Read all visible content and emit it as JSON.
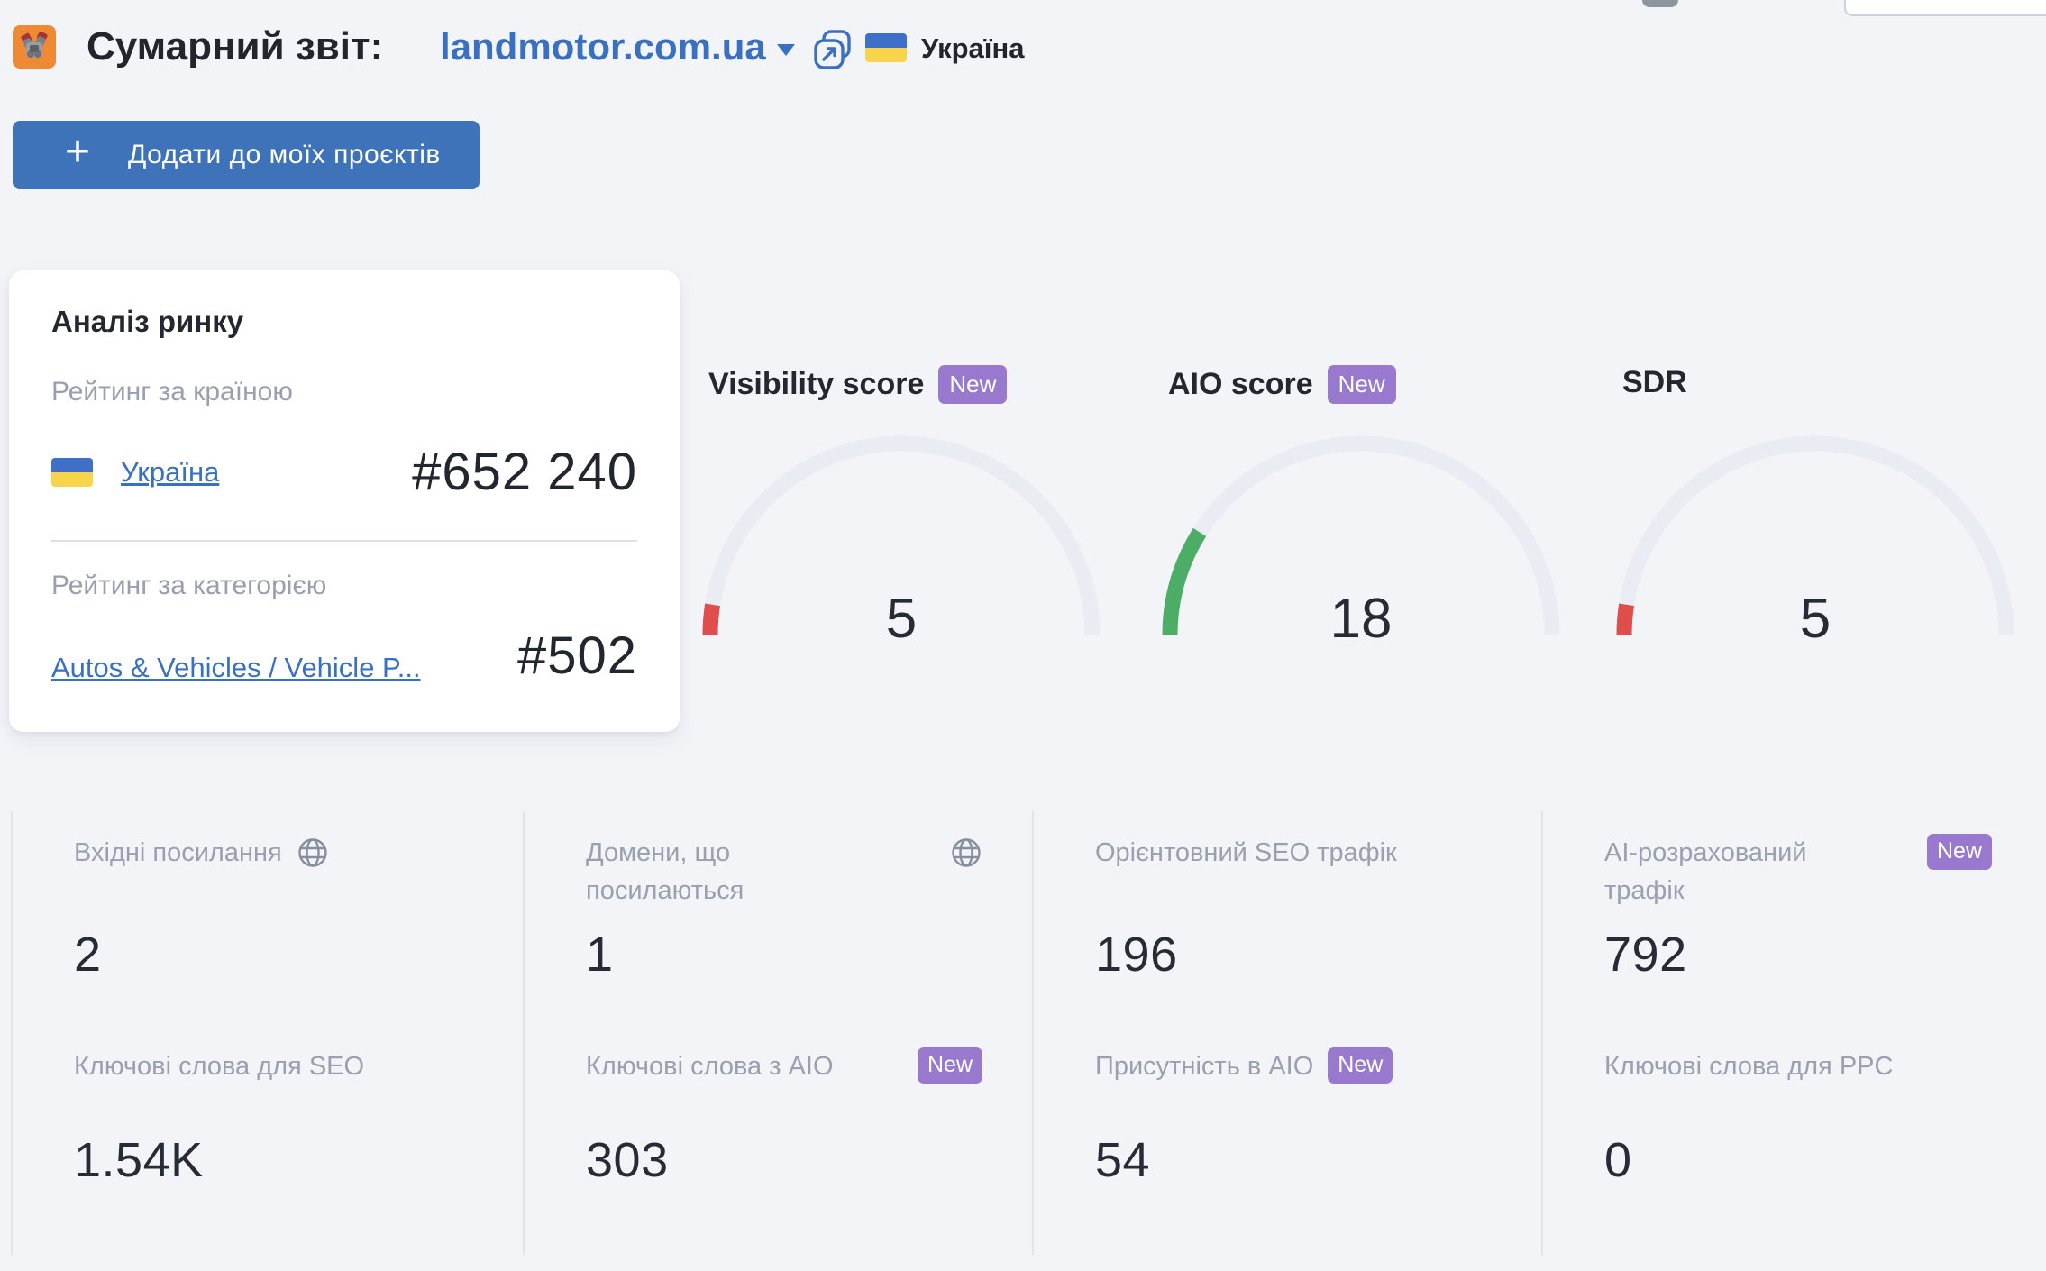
{
  "header": {
    "title": "Сумарний звіт:",
    "domain": "landmotor.com.ua",
    "country": "Україна",
    "add_project_button": "Додати до моїх проєктів"
  },
  "market_analysis": {
    "title": "Аналіз ринку",
    "country_rank_label": "Рейтинг за країною",
    "country_link": "Україна",
    "country_rank": "#652 240",
    "category_rank_label": "Рейтинг за категорією",
    "category_link": "Autos & Vehicles / Vehicle P...",
    "category_rank": "#502"
  },
  "gauges": [
    {
      "label": "Visibility score",
      "badge": "New",
      "value": 5,
      "max": 100,
      "color": "#df4e4c"
    },
    {
      "label": "AIO score",
      "badge": "New",
      "value": 18,
      "max": 100,
      "color": "#4cae66"
    },
    {
      "label": "SDR",
      "badge": "",
      "value": 5,
      "max": 100,
      "color": "#df4e4c"
    }
  ],
  "chart_data": {
    "type": "gauge",
    "series": [
      {
        "name": "Visibility score",
        "value": 5,
        "range": [
          0,
          100
        ],
        "color": "#df4e4c"
      },
      {
        "name": "AIO score",
        "value": 18,
        "range": [
          0,
          100
        ],
        "color": "#4cae66"
      },
      {
        "name": "SDR",
        "value": 5,
        "range": [
          0,
          100
        ],
        "color": "#df4e4c"
      }
    ]
  },
  "metrics": {
    "items": [
      {
        "label": "Вхідні посилання",
        "value": "2",
        "icon": "globe",
        "badge": ""
      },
      {
        "label": "Домени, що посилаються",
        "value": "1",
        "icon": "globe",
        "badge": ""
      },
      {
        "label": "Орієнтовний SEO трафік",
        "value": "196",
        "icon": "",
        "badge": ""
      },
      {
        "label": "AI-розрахований трафік",
        "value": "792",
        "icon": "",
        "badge": "New"
      },
      {
        "label": "Ключові слова для SEO",
        "value": "1.54K",
        "icon": "",
        "badge": ""
      },
      {
        "label": "Ключові слова з AIO",
        "value": "303",
        "icon": "",
        "badge": "New"
      },
      {
        "label": "Присутність в AIO",
        "value": "54",
        "icon": "",
        "badge": "New"
      },
      {
        "label": "Ключові слова для PPC",
        "value": "0",
        "icon": "",
        "badge": ""
      }
    ]
  },
  "colors": {
    "background": "#f2f4f8",
    "accent_blue": "#3a70c2",
    "button_blue": "#3e72b9",
    "badge_purple": "#9879ce",
    "gauge_red": "#df4e4c",
    "gauge_green": "#4cae66",
    "gauge_track": "#e9ecf2",
    "label_gray": "#9aa0af",
    "flag_blue": "#3e6fc9",
    "flag_yellow": "#f6d44c"
  }
}
